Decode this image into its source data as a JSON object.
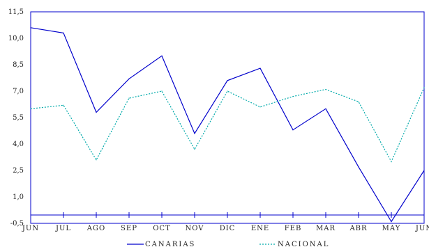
{
  "chart_data": {
    "type": "line",
    "categories": [
      "JUN",
      "JUL",
      "AGO",
      "SEP",
      "OCT",
      "NOV",
      "DIC",
      "ENE",
      "FEB",
      "MAR",
      "ABR",
      "MAY",
      "JUN"
    ],
    "y_ticks": [
      "11,5",
      "10,0",
      "8,5",
      "7,0",
      "5,5",
      "4,0",
      "2,5",
      "1,0",
      "-0,5"
    ],
    "ylim": [
      -0.5,
      11.5
    ],
    "grid": false,
    "legend_position": "bottom",
    "series": [
      {
        "name": "CANARIAS",
        "color": "#0000cc",
        "style": "solid",
        "values": [
          10.6,
          10.3,
          5.8,
          7.7,
          9.0,
          4.6,
          7.6,
          8.3,
          4.8,
          6.0,
          2.7,
          -0.4,
          2.5
        ]
      },
      {
        "name": "NACIONAL",
        "color": "#00aaaa",
        "style": "dotted",
        "values": [
          6.0,
          6.2,
          3.1,
          6.6,
          7.0,
          3.7,
          7.0,
          6.1,
          6.7,
          7.1,
          6.4,
          3.0,
          7.2
        ]
      }
    ]
  }
}
